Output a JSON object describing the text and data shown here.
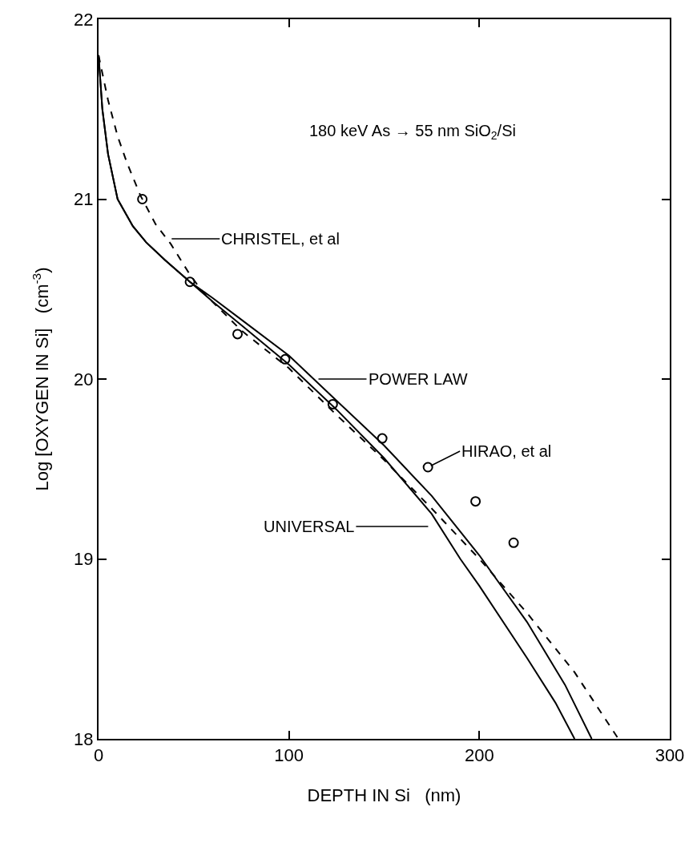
{
  "chart_data": {
    "type": "line",
    "xlabel": "DEPTH IN Si   (nm)",
    "ylabel": "Log [OXYGEN IN Si]   (cm$^{-3}$)",
    "xlim": [
      0,
      300
    ],
    "xticks": [
      0,
      100,
      200,
      300
    ],
    "ylim": [
      18,
      22
    ],
    "yticks": [
      18,
      19,
      20,
      21,
      22
    ],
    "grid": false,
    "series": [
      {
        "color": "#000000",
        "line_style": "solid",
        "x": [
          0,
          2,
          5,
          10,
          18,
          25,
          35,
          48,
          60,
          75,
          100,
          125,
          150,
          175,
          190,
          200,
          225,
          240,
          250
        ],
        "values": [
          21.8,
          21.5,
          21.25,
          21.0,
          20.85,
          20.76,
          20.66,
          20.54,
          20.43,
          20.3,
          20.08,
          19.83,
          19.56,
          19.25,
          19.0,
          18.85,
          18.45,
          18.2,
          18.0
        ]
      },
      {
        "color": "#000000",
        "line_style": "solid",
        "x": [
          0,
          2,
          5,
          10,
          18,
          25,
          35,
          48,
          60,
          75,
          100,
          125,
          150,
          175,
          200,
          225,
          245,
          259
        ],
        "values": [
          21.8,
          21.5,
          21.25,
          21.0,
          20.85,
          20.76,
          20.66,
          20.54,
          20.45,
          20.33,
          20.13,
          19.88,
          19.63,
          19.35,
          19.02,
          18.65,
          18.3,
          18.0
        ]
      },
      {
        "color": "#000000",
        "line_style": "dashed",
        "x": [
          0,
          5,
          10,
          15,
          22,
          30,
          38,
          48,
          55,
          75,
          100,
          125,
          150,
          175,
          200,
          225,
          250,
          273
        ],
        "values": [
          21.8,
          21.55,
          21.35,
          21.2,
          21.02,
          20.86,
          20.75,
          20.58,
          20.48,
          20.27,
          20.06,
          19.8,
          19.55,
          19.28,
          19.0,
          18.7,
          18.37,
          18.0
        ]
      },
      {
        "type": "scatter",
        "marker": "circle",
        "color": "#000000",
        "x": [
          23,
          48,
          73,
          98,
          123,
          149,
          173,
          198,
          218
        ],
        "values": [
          21.0,
          20.54,
          20.25,
          20.11,
          19.86,
          19.67,
          19.51,
          19.32,
          19.09
        ]
      }
    ],
    "annotations": [
      "180 keV As → 55 nm SiO$_{2}$/Si",
      "CHRISTEL, et al",
      "POWER LAW",
      {
        "text": "HIRAO, et al",
        "x": 173,
        "y": 19.51
      },
      "UNIVERSAL"
    ]
  }
}
